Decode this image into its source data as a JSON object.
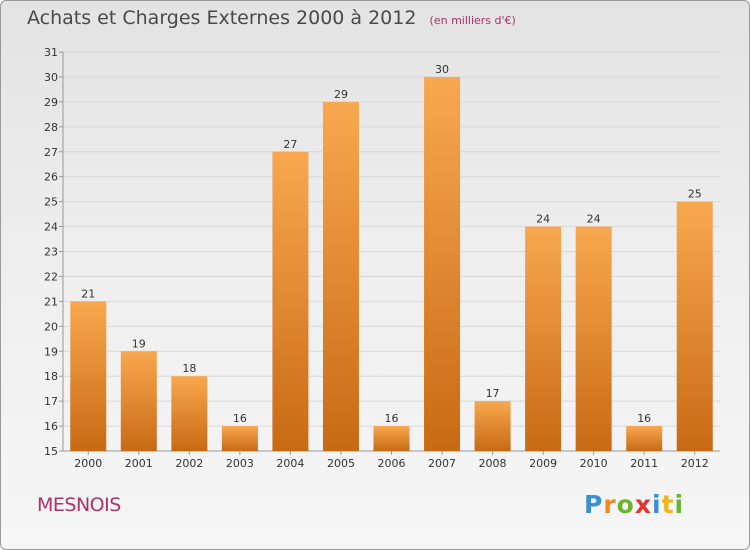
{
  "header": {
    "title": "Achats et Charges Externes 2000 à 2012",
    "unit": "(en milliers d'€)"
  },
  "footer": {
    "place": "MESNOIS",
    "brand_letters": [
      "P",
      "r",
      "o",
      "x",
      "i",
      "t",
      "i"
    ]
  },
  "colors": {
    "bar_top": "#f8a850",
    "bar_bottom": "#c86a14",
    "grid": "#d8d8d8",
    "axis_text": "#333333",
    "accent": "#b0306a"
  },
  "chart_data": {
    "type": "bar",
    "title": "Achats et Charges Externes 2000 à 2012",
    "xlabel": "",
    "ylabel": "",
    "categories": [
      "2000",
      "2001",
      "2002",
      "2003",
      "2004",
      "2005",
      "2006",
      "2007",
      "2008",
      "2009",
      "2010",
      "2011",
      "2012"
    ],
    "values": [
      21,
      19,
      18,
      16,
      27,
      29,
      16,
      30,
      17,
      24,
      24,
      16,
      25
    ],
    "ylim": [
      15,
      31
    ],
    "yticks": [
      15,
      16,
      17,
      18,
      19,
      20,
      21,
      22,
      23,
      24,
      25,
      26,
      27,
      28,
      29,
      30,
      31
    ],
    "grid": true,
    "data_labels": true
  }
}
